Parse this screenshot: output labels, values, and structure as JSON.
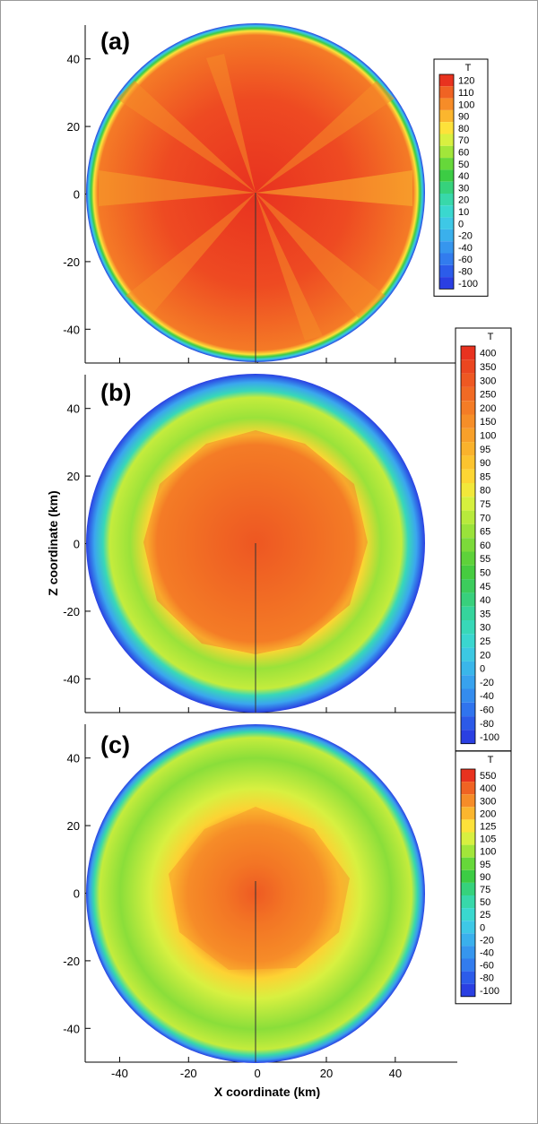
{
  "chart_data": {
    "type": "heatmap",
    "xlabel": "X coordinate (km)",
    "ylabel": "Z coordinate (km)",
    "x_ticks": [
      -40,
      -20,
      0,
      20,
      40
    ],
    "xlim": [
      -50,
      58
    ],
    "colors": {
      "background": "#ffffff",
      "axis": "#000000",
      "frame": "#9a9a9a"
    },
    "panels": [
      {
        "label": "(a)",
        "ylim": [
          -50,
          50
        ],
        "y_ticks": [
          40,
          20,
          0,
          -20,
          -40
        ],
        "legend": {
          "title": "T",
          "levels": [
            "120",
            "110",
            "100",
            "90",
            "80",
            "70",
            "60",
            "50",
            "40",
            "30",
            "20",
            "10",
            "0",
            "-20",
            "-40",
            "-60",
            "-80",
            "-100"
          ],
          "colors": [
            "#e8321f",
            "#f06323",
            "#f68c28",
            "#fbb62e",
            "#fde23a",
            "#d8f040",
            "#a2e63a",
            "#66d83a",
            "#3ccc44",
            "#36d27c",
            "#38d8aa",
            "#3ad8cf",
            "#3ec8e6",
            "#3ab0ec",
            "#3696ee",
            "#327cee",
            "#2c5cea",
            "#2a3fe2"
          ]
        }
      },
      {
        "label": "(b)",
        "ylim": [
          -50,
          50
        ],
        "y_ticks": [
          40,
          20,
          0,
          -20,
          -40
        ],
        "legend": {
          "title": "T",
          "levels": [
            "400",
            "350",
            "300",
            "250",
            "200",
            "150",
            "100",
            "95",
            "90",
            "85",
            "80",
            "75",
            "70",
            "65",
            "60",
            "55",
            "50",
            "45",
            "40",
            "35",
            "30",
            "25",
            "20",
            "0",
            "-20",
            "-40",
            "-60",
            "-80",
            "-100"
          ],
          "colors": [
            "#e8321f",
            "#eb4620",
            "#ee5822",
            "#f16a24",
            "#f47c26",
            "#f68e28",
            "#f8a02a",
            "#fab22c",
            "#fcc42f",
            "#fdd633",
            "#f2e83a",
            "#d6f03e",
            "#b8ea3c",
            "#9ae23a",
            "#7cda3a",
            "#5ed23a",
            "#46cc40",
            "#3ccc5c",
            "#38d07c",
            "#36d49c",
            "#38d8b8",
            "#3ad6cf",
            "#3cc8e2",
            "#3ab6ea",
            "#38a2ee",
            "#348cee",
            "#3074ee",
            "#2c5ae8",
            "#2a3fe2"
          ]
        }
      },
      {
        "label": "(c)",
        "ylim": [
          -50,
          50
        ],
        "y_ticks": [
          40,
          20,
          0,
          -20,
          -40
        ],
        "legend": {
          "title": "T",
          "levels": [
            "550",
            "400",
            "300",
            "200",
            "125",
            "105",
            "100",
            "95",
            "90",
            "75",
            "50",
            "25",
            "0",
            "-20",
            "-40",
            "-60",
            "-80",
            "-100"
          ],
          "colors": [
            "#e8321f",
            "#f06323",
            "#f68c28",
            "#fbb62e",
            "#fde23a",
            "#d8f040",
            "#a2e63a",
            "#66d83a",
            "#3ccc44",
            "#36d27c",
            "#38d8aa",
            "#3ad8cf",
            "#3ec8e6",
            "#3ab0ec",
            "#3696ee",
            "#327cee",
            "#2c5cea",
            "#2a3fe2"
          ]
        }
      }
    ]
  }
}
